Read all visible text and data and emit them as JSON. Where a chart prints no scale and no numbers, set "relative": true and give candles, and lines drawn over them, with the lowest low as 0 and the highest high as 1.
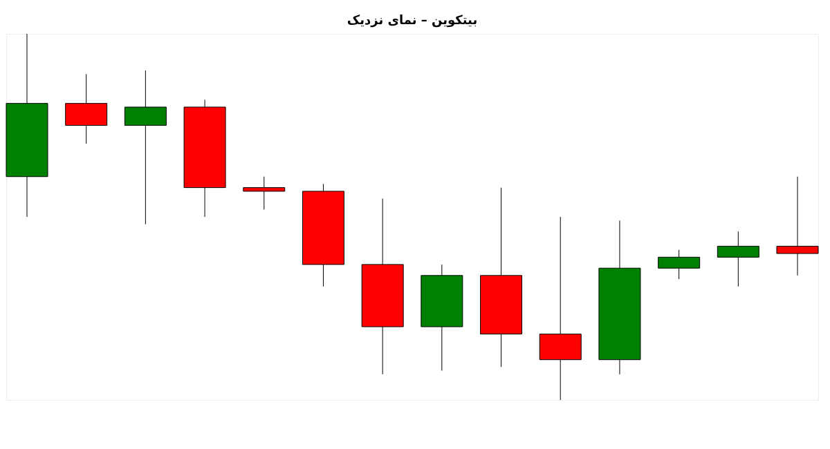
{
  "chart_data": {
    "type": "candlestick",
    "title": "بیتکوین – نمای نزدیک",
    "relative": true,
    "categories": [
      null,
      null,
      null,
      null,
      null,
      null,
      null,
      null,
      null,
      null,
      null,
      null,
      null,
      null
    ],
    "ohlc": [
      [
        0.61,
        1,
        0.5,
        0.81
      ],
      [
        0.81,
        0.89,
        0.7,
        0.75
      ],
      [
        0.75,
        0.9,
        0.48,
        0.8
      ],
      [
        0.8,
        0.82,
        0.5,
        0.58
      ],
      [
        0.58,
        0.61,
        0.52,
        0.57
      ],
      [
        0.57,
        0.59,
        0.31,
        0.37
      ],
      [
        0.37,
        0.55,
        0.07,
        0.2
      ],
      [
        0.2,
        0.37,
        0.08,
        0.34
      ],
      [
        0.34,
        0.58,
        0.09,
        0.18
      ],
      [
        0.18,
        0.5,
        0,
        0.11
      ],
      [
        0.11,
        0.49,
        0.07,
        0.36
      ],
      [
        0.36,
        0.41,
        0.33,
        0.39
      ],
      [
        0.39,
        0.46,
        0.31,
        0.42
      ],
      [
        0.42,
        0.61,
        0.34,
        0.4
      ]
    ],
    "colors": [
      "#008000",
      "#ff0000",
      "#008000",
      "#ff0000",
      "#ff0000",
      "#ff0000",
      "#ff0000",
      "#008000",
      "#ff0000",
      "#ff0000",
      "#008000",
      "#008000",
      "#008000",
      "#ff0000"
    ]
  }
}
